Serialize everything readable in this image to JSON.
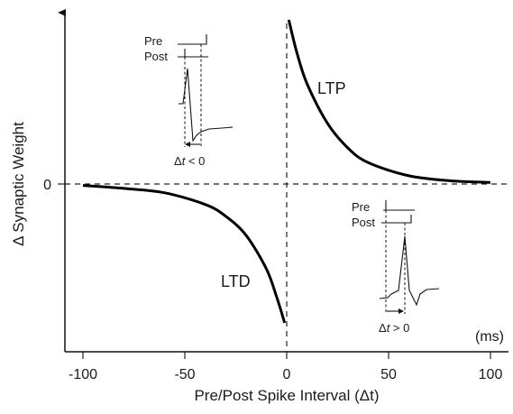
{
  "chart_data": {
    "type": "line",
    "xlabel": "Pre/Post Spike Interval (Δt)",
    "ylabel": "Δ Synaptic Weight",
    "x_unit": "(ms)",
    "x_ticks": [
      "-100",
      "-50",
      "0",
      "50",
      "100"
    ],
    "y_ticks": [
      "0"
    ],
    "series": [
      {
        "name": "LTP",
        "x": [
          1,
          5,
          10,
          20,
          30,
          40,
          60,
          80,
          100
        ],
        "y": [
          1.0,
          0.8,
          0.61,
          0.37,
          0.22,
          0.13,
          0.05,
          0.02,
          0.01
        ]
      },
      {
        "name": "LTD",
        "x": [
          -100,
          -80,
          -60,
          -40,
          -30,
          -20,
          -10,
          -5,
          -1
        ],
        "y": [
          -0.01,
          -0.03,
          -0.06,
          -0.14,
          -0.22,
          -0.35,
          -0.58,
          -0.77,
          -0.95
        ]
      }
    ],
    "insets": [
      {
        "pre_label": "Pre",
        "post_label": "Post",
        "caption_prefix": "Δ",
        "caption_var": "t",
        "caption_suffix": " < 0"
      },
      {
        "pre_label": "Pre",
        "post_label": "Post",
        "caption_prefix": "Δ",
        "caption_var": "t",
        "caption_suffix": " > 0"
      }
    ],
    "grid": false,
    "legend": "none"
  }
}
